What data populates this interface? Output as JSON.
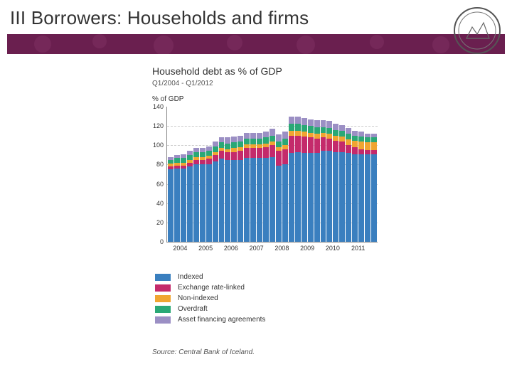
{
  "slide": {
    "title": "III Borrowers: Households and firms",
    "ribbon_color": "#6a1f4f",
    "ribbon_pattern_color": "#8a3a6c"
  },
  "chart": {
    "type": "stacked-bar",
    "title": "Household debt as % of GDP",
    "subtitle": "Q1/2004 - Q1/2012",
    "y_title": "% of GDP",
    "background_color": "#ffffff",
    "grid_color": "#cccccc",
    "axis_color": "#888888",
    "ylim": [
      0,
      140
    ],
    "ytick_step": 20,
    "bar_gap": 1,
    "series": [
      {
        "key": "indexed",
        "label": "Indexed",
        "color": "#3a7fbf"
      },
      {
        "key": "exlinked",
        "label": "Exchange rate-linked",
        "color": "#c42a6b"
      },
      {
        "key": "nonidx",
        "label": "Non-indexed",
        "color": "#f0a531"
      },
      {
        "key": "overdraft",
        "label": "Overdraft",
        "color": "#2aa876"
      },
      {
        "key": "asset",
        "label": "Asset financing agreements",
        "color": "#9b8fc4"
      }
    ],
    "x_year_labels": [
      "2004",
      "2005",
      "2006",
      "2007",
      "2008",
      "2009",
      "2010",
      "2011"
    ],
    "bars": [
      {
        "indexed": 75,
        "exlinked": 3,
        "nonidx": 3,
        "overdraft": 4,
        "asset": 3
      },
      {
        "indexed": 76,
        "exlinked": 3,
        "nonidx": 3,
        "overdraft": 5,
        "asset": 3
      },
      {
        "indexed": 76,
        "exlinked": 3,
        "nonidx": 3,
        "overdraft": 5,
        "asset": 4
      },
      {
        "indexed": 78,
        "exlinked": 4,
        "nonidx": 3,
        "overdraft": 5,
        "asset": 4
      },
      {
        "indexed": 80,
        "exlinked": 5,
        "nonidx": 3,
        "overdraft": 5,
        "asset": 4
      },
      {
        "indexed": 80,
        "exlinked": 5,
        "nonidx": 3,
        "overdraft": 5,
        "asset": 4
      },
      {
        "indexed": 80,
        "exlinked": 6,
        "nonidx": 3,
        "overdraft": 5,
        "asset": 5
      },
      {
        "indexed": 83,
        "exlinked": 7,
        "nonidx": 3,
        "overdraft": 6,
        "asset": 5
      },
      {
        "indexed": 86,
        "exlinked": 8,
        "nonidx": 3,
        "overdraft": 6,
        "asset": 5
      },
      {
        "indexed": 85,
        "exlinked": 8,
        "nonidx": 3,
        "overdraft": 6,
        "asset": 6
      },
      {
        "indexed": 85,
        "exlinked": 8,
        "nonidx": 4,
        "overdraft": 6,
        "asset": 6
      },
      {
        "indexed": 85,
        "exlinked": 9,
        "nonidx": 4,
        "overdraft": 6,
        "asset": 6
      },
      {
        "indexed": 87,
        "exlinked": 10,
        "nonidx": 4,
        "overdraft": 6,
        "asset": 6
      },
      {
        "indexed": 87,
        "exlinked": 10,
        "nonidx": 4,
        "overdraft": 6,
        "asset": 6
      },
      {
        "indexed": 87,
        "exlinked": 10,
        "nonidx": 4,
        "overdraft": 6,
        "asset": 6
      },
      {
        "indexed": 87,
        "exlinked": 11,
        "nonidx": 4,
        "overdraft": 6,
        "asset": 6
      },
      {
        "indexed": 88,
        "exlinked": 12,
        "nonidx": 4,
        "overdraft": 6,
        "asset": 7
      },
      {
        "indexed": 79,
        "exlinked": 15,
        "nonidx": 4,
        "overdraft": 6,
        "asset": 7
      },
      {
        "indexed": 80,
        "exlinked": 16,
        "nonidx": 4,
        "overdraft": 7,
        "asset": 7
      },
      {
        "indexed": 92,
        "exlinked": 18,
        "nonidx": 5,
        "overdraft": 7,
        "asset": 8
      },
      {
        "indexed": 93,
        "exlinked": 17,
        "nonidx": 5,
        "overdraft": 7,
        "asset": 8
      },
      {
        "indexed": 92,
        "exlinked": 17,
        "nonidx": 5,
        "overdraft": 7,
        "asset": 7
      },
      {
        "indexed": 92,
        "exlinked": 16,
        "nonidx": 5,
        "overdraft": 7,
        "asset": 7
      },
      {
        "indexed": 92,
        "exlinked": 15,
        "nonidx": 5,
        "overdraft": 7,
        "asset": 7
      },
      {
        "indexed": 94,
        "exlinked": 14,
        "nonidx": 5,
        "overdraft": 6,
        "asset": 7
      },
      {
        "indexed": 94,
        "exlinked": 13,
        "nonidx": 5,
        "overdraft": 6,
        "asset": 7
      },
      {
        "indexed": 93,
        "exlinked": 12,
        "nonidx": 5,
        "overdraft": 6,
        "asset": 6
      },
      {
        "indexed": 93,
        "exlinked": 11,
        "nonidx": 5,
        "overdraft": 6,
        "asset": 6
      },
      {
        "indexed": 92,
        "exlinked": 8,
        "nonidx": 6,
        "overdraft": 6,
        "asset": 6
      },
      {
        "indexed": 91,
        "exlinked": 7,
        "nonidx": 7,
        "overdraft": 5,
        "asset": 5
      },
      {
        "indexed": 91,
        "exlinked": 5,
        "nonidx": 8,
        "overdraft": 5,
        "asset": 5
      },
      {
        "indexed": 91,
        "exlinked": 4,
        "nonidx": 8,
        "overdraft": 5,
        "asset": 4
      },
      {
        "indexed": 91,
        "exlinked": 4,
        "nonidx": 8,
        "overdraft": 5,
        "asset": 4
      }
    ]
  },
  "source": {
    "label": "Source:",
    "text": "Central Bank of Iceland."
  }
}
